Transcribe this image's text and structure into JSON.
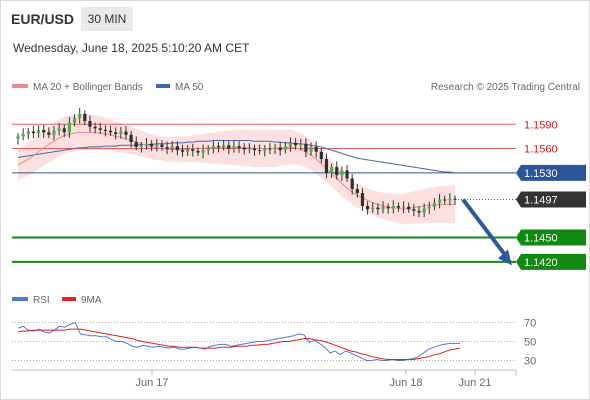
{
  "header": {
    "symbol": "EUR/USD",
    "timeframe": "30 MIN",
    "timestamp": "Wednesday, June 18, 2025 5:10:20 AM CET",
    "copyright": "Research © 2025 Trading Central"
  },
  "legend": {
    "ma20": "MA 20 + Bollinger Bands",
    "ma50": "MA 50",
    "rsi": "RSI",
    "ma9": "9MA"
  },
  "colors": {
    "bull": "#4caf50",
    "bear": "#2e2e2e",
    "ma20": "#e88a8a",
    "ma50": "#4466aa",
    "band": "#fbdada",
    "support": "#118811",
    "pivot": "#2a5599",
    "resistance": "#e86060",
    "arrow": "#2e5a9c",
    "rsi": "#5577cc",
    "rsi_ma": "#dd2222"
  },
  "chart_data": [
    {
      "type": "candlestick",
      "ylim": [
        1.14,
        1.162
      ],
      "x_labels": [
        "Jun 17",
        "Jun 18",
        "Jun 21"
      ],
      "levels": [
        {
          "value": 1.159,
          "label": "1.1590",
          "kind": "resistance"
        },
        {
          "value": 1.156,
          "label": "1.1560",
          "kind": "resistance"
        },
        {
          "value": 1.153,
          "label": "1.1530",
          "kind": "pivot"
        },
        {
          "value": 1.1497,
          "label": "1.1497",
          "kind": "last"
        },
        {
          "value": 1.145,
          "label": "1.1450",
          "kind": "support"
        },
        {
          "value": 1.142,
          "label": "1.1420",
          "kind": "support"
        }
      ],
      "close": [
        1.1575,
        1.1578,
        1.1581,
        1.1579,
        1.1583,
        1.158,
        1.1577,
        1.1582,
        1.1585,
        1.158,
        1.1592,
        1.1598,
        1.1603,
        1.1594,
        1.1587,
        1.1585,
        1.1583,
        1.1582,
        1.158,
        1.1578,
        1.1581,
        1.1577,
        1.1568,
        1.1562,
        1.1564,
        1.1566,
        1.1563,
        1.1565,
        1.1562,
        1.156,
        1.1563,
        1.1558,
        1.1556,
        1.1559,
        1.1557,
        1.1555,
        1.1558,
        1.156,
        1.1563,
        1.1562,
        1.1564,
        1.156,
        1.1563,
        1.1561,
        1.1559,
        1.156,
        1.1558,
        1.1557,
        1.156,
        1.1559,
        1.1561,
        1.1558,
        1.1563,
        1.1567,
        1.1564,
        1.1566,
        1.1556,
        1.1562,
        1.1556,
        1.1547,
        1.153,
        1.1537,
        1.1527,
        1.1533,
        1.1523,
        1.151,
        1.1505,
        1.1489,
        1.1485,
        1.1487,
        1.1485,
        1.1488,
        1.1486,
        1.1489,
        1.1487,
        1.1488,
        1.1485,
        1.1483,
        1.1481,
        1.1486,
        1.1488,
        1.1493,
        1.1497,
        1.1496,
        1.1498,
        1.1497
      ],
      "ma20": [
        1.154,
        1.1543,
        1.1547,
        1.1551,
        1.1556,
        1.1561,
        1.1565,
        1.1569,
        1.1573,
        1.1576,
        1.1578,
        1.1579,
        1.158,
        1.158,
        1.158,
        1.158,
        1.1579,
        1.1578,
        1.1577,
        1.1575,
        1.1574,
        1.1572,
        1.157,
        1.1568,
        1.1566,
        1.1564,
        1.1562,
        1.1561,
        1.156,
        1.1559,
        1.1559,
        1.1559,
        1.1559,
        1.1559,
        1.156,
        1.156,
        1.156,
        1.1561,
        1.1561,
        1.1561,
        1.1561,
        1.1561,
        1.1561,
        1.1561,
        1.1561,
        1.1561,
        1.156,
        1.156,
        1.156,
        1.156,
        1.156,
        1.1561,
        1.1561,
        1.1562,
        1.1561,
        1.1559,
        1.1556,
        1.1552,
        1.1547,
        1.1541,
        1.1535,
        1.1529,
        1.1523,
        1.1517,
        1.1511,
        1.1506,
        1.1502,
        1.1499,
        1.1496,
        1.1493,
        1.1491,
        1.1489,
        1.1488,
        1.1487,
        1.1486,
        1.1485,
        1.1486,
        1.1487,
        1.1488,
        1.1489,
        1.149,
        1.149,
        1.1491,
        1.1491,
        1.1491,
        1.1491
      ],
      "ma50": [
        1.1549,
        1.155,
        1.1551,
        1.1552,
        1.1553,
        1.1554,
        1.1555,
        1.1556,
        1.1557,
        1.1558,
        1.1559,
        1.156,
        1.1561,
        1.1561,
        1.1562,
        1.1562,
        1.1562,
        1.1563,
        1.1563,
        1.1563,
        1.1564,
        1.1564,
        1.1564,
        1.1564,
        1.1565,
        1.1565,
        1.1565,
        1.1566,
        1.1566,
        1.1566,
        1.1567,
        1.1567,
        1.1567,
        1.1568,
        1.1568,
        1.1569,
        1.1569,
        1.1569,
        1.157,
        1.157,
        1.157,
        1.157,
        1.157,
        1.157,
        1.157,
        1.157,
        1.1569,
        1.1569,
        1.1569,
        1.1569,
        1.1568,
        1.1568,
        1.1567,
        1.1567,
        1.1566,
        1.1566,
        1.1565,
        1.1564,
        1.1563,
        1.1562,
        1.156,
        1.1558,
        1.1556,
        1.1554,
        1.1552,
        1.155,
        1.1548,
        1.1547,
        1.1546,
        1.1545,
        1.1544,
        1.1543,
        1.1542,
        1.1541,
        1.154,
        1.1539,
        1.1538,
        1.1537,
        1.1536,
        1.1535,
        1.1534,
        1.1533,
        1.1532,
        1.1531,
        1.1531,
        1.153
      ]
    },
    {
      "type": "line",
      "ylim": [
        20,
        80
      ],
      "y_ticks": [
        70,
        50,
        30
      ],
      "series": [
        {
          "name": "RSI",
          "values": [
            64,
            66,
            62,
            61,
            63,
            60,
            59,
            62,
            66,
            65,
            68,
            70,
            58,
            57,
            56,
            56,
            55,
            55,
            52,
            50,
            50,
            48,
            45,
            44,
            46,
            45,
            44,
            45,
            44,
            43,
            44,
            42,
            42,
            43,
            44,
            43,
            42,
            45,
            46,
            47,
            47,
            45,
            46,
            47,
            48,
            49,
            50,
            50,
            51,
            52,
            53,
            54,
            55,
            56,
            58,
            57,
            49,
            51,
            48,
            44,
            38,
            40,
            36,
            40,
            38,
            35,
            33,
            30,
            30,
            31,
            30,
            30,
            31,
            30,
            30,
            31,
            32,
            34,
            38,
            42,
            44,
            46,
            47,
            48,
            48,
            48
          ]
        },
        {
          "name": "9MA",
          "values": [
            60,
            61,
            61,
            62,
            62,
            62,
            62,
            62,
            62,
            62,
            63,
            63,
            63,
            62,
            61,
            60,
            59,
            58,
            57,
            56,
            55,
            54,
            53,
            51,
            50,
            49,
            48,
            47,
            46,
            45,
            45,
            44,
            44,
            44,
            44,
            43,
            43,
            43,
            43,
            44,
            44,
            44,
            45,
            45,
            45,
            46,
            46,
            47,
            47,
            48,
            49,
            50,
            50,
            51,
            52,
            53,
            53,
            52,
            51,
            50,
            48,
            46,
            44,
            42,
            40,
            39,
            37,
            36,
            34,
            33,
            32,
            31,
            31,
            31,
            31,
            31,
            31,
            32,
            33,
            34,
            36,
            37,
            39,
            41,
            42,
            43
          ]
        }
      ]
    }
  ]
}
